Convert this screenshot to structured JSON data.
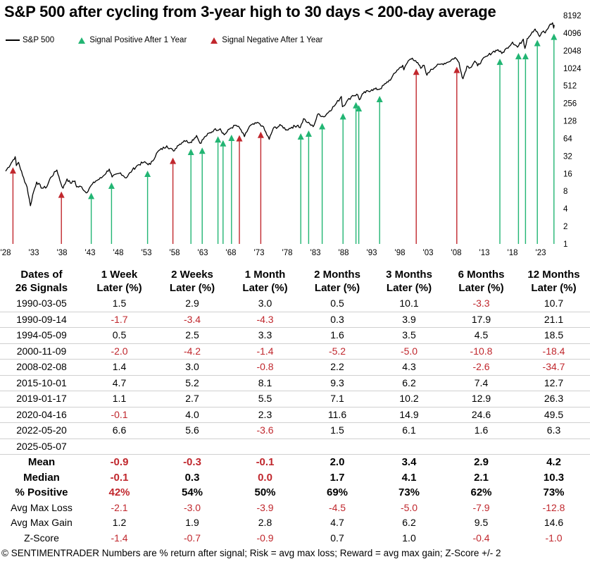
{
  "title": "S&P 500 after cycling from 3-year high to 30 days < 200-day average",
  "legend": {
    "sp500": "S&P 500",
    "positive": "Signal Positive After 1 Year",
    "negative": "Signal Negative After 1 Year"
  },
  "colors": {
    "positive": "#22b573",
    "negative": "#c1272d",
    "line": "#000000",
    "neg_text": "#c0272d"
  },
  "chart_data": {
    "type": "line",
    "y_scale": "log2",
    "ylim": [
      1,
      8192
    ],
    "yticks": [
      "1",
      "2",
      "4",
      "8",
      "16",
      "32",
      "64",
      "128",
      "256",
      "512",
      "1024",
      "2048",
      "4096",
      "8192"
    ],
    "xlim": [
      1928,
      2025.5
    ],
    "xticks": [
      "'28",
      "'33",
      "'38",
      "'43",
      "'48",
      "'53",
      "'58",
      "'63",
      "'68",
      "'73",
      "'78",
      "'83",
      "'88",
      "'93",
      "'98",
      "'03",
      "'08",
      "'13",
      "'18",
      "'23"
    ],
    "series": [
      {
        "name": "S&P 500",
        "points": [
          [
            1928.0,
            17.7
          ],
          [
            1929.0,
            24.4
          ],
          [
            1929.7,
            31.3
          ],
          [
            1929.9,
            22.0
          ],
          [
            1930.3,
            25.0
          ],
          [
            1931.0,
            15.0
          ],
          [
            1931.8,
            9.5
          ],
          [
            1932.4,
            4.5
          ],
          [
            1932.8,
            6.9
          ],
          [
            1933.5,
            11.5
          ],
          [
            1934.5,
            9.0
          ],
          [
            1935.3,
            9.5
          ],
          [
            1936.0,
            13.8
          ],
          [
            1937.1,
            18.5
          ],
          [
            1937.8,
            11.0
          ],
          [
            1938.2,
            9.0
          ],
          [
            1938.9,
            13.0
          ],
          [
            1939.5,
            11.0
          ],
          [
            1940.3,
            12.0
          ],
          [
            1940.6,
            9.5
          ],
          [
            1941.5,
            9.5
          ],
          [
            1942.3,
            7.5
          ],
          [
            1943.0,
            9.5
          ],
          [
            1944.0,
            12.0
          ],
          [
            1945.0,
            13.5
          ],
          [
            1946.4,
            19.2
          ],
          [
            1946.9,
            14.0
          ],
          [
            1948.4,
            16.5
          ],
          [
            1949.4,
            13.5
          ],
          [
            1950.5,
            18.5
          ],
          [
            1951.5,
            22.5
          ],
          [
            1952.5,
            25.0
          ],
          [
            1953.7,
            23.0
          ],
          [
            1955.0,
            38.0
          ],
          [
            1956.6,
            48.0
          ],
          [
            1957.8,
            39.0
          ],
          [
            1958.5,
            48.0
          ],
          [
            1959.7,
            59.0
          ],
          [
            1960.8,
            55.0
          ],
          [
            1961.9,
            72.0
          ],
          [
            1962.5,
            53.0
          ],
          [
            1963.5,
            70.0
          ],
          [
            1965.0,
            90.0
          ],
          [
            1966.1,
            94.0
          ],
          [
            1966.8,
            74.0
          ],
          [
            1967.9,
            96.0
          ],
          [
            1968.9,
            108.0
          ],
          [
            1969.6,
            95.0
          ],
          [
            1970.4,
            69.0
          ],
          [
            1971.3,
            104.0
          ],
          [
            1972.9,
            119.0
          ],
          [
            1973.6,
            105.0
          ],
          [
            1974.8,
            62.0
          ],
          [
            1975.5,
            95.0
          ],
          [
            1976.9,
            107.0
          ],
          [
            1977.9,
            90.0
          ],
          [
            1978.8,
            100.0
          ],
          [
            1979.9,
            108.0
          ],
          [
            1980.3,
            98.0
          ],
          [
            1980.9,
            140.0
          ],
          [
            1981.6,
            120.0
          ],
          [
            1982.6,
            102.0
          ],
          [
            1983.5,
            170.0
          ],
          [
            1984.5,
            150.0
          ],
          [
            1985.5,
            190.0
          ],
          [
            1986.5,
            240.0
          ],
          [
            1987.6,
            336.0
          ],
          [
            1987.8,
            224.0
          ],
          [
            1988.5,
            270.0
          ],
          [
            1989.6,
            350.0
          ],
          [
            1990.5,
            360.0
          ],
          [
            1990.8,
            295.0
          ],
          [
            1991.5,
            380.0
          ],
          [
            1993.0,
            440.0
          ],
          [
            1994.5,
            455.0
          ],
          [
            1995.5,
            560.0
          ],
          [
            1996.5,
            690.0
          ],
          [
            1997.5,
            950.0
          ],
          [
            1998.5,
            1150.0
          ],
          [
            1998.7,
            960.0
          ],
          [
            1999.5,
            1380.0
          ],
          [
            2000.2,
            1527.0
          ],
          [
            2000.8,
            1380.0
          ],
          [
            2001.7,
            1020.0
          ],
          [
            2002.3,
            1150.0
          ],
          [
            2002.8,
            777.0
          ],
          [
            2003.5,
            980.0
          ],
          [
            2004.5,
            1120.0
          ],
          [
            2005.5,
            1220.0
          ],
          [
            2006.5,
            1300.0
          ],
          [
            2007.8,
            1565.0
          ],
          [
            2008.5,
            1280.0
          ],
          [
            2008.9,
            850.0
          ],
          [
            2009.2,
            676.0
          ],
          [
            2009.9,
            1110.0
          ],
          [
            2010.5,
            1050.0
          ],
          [
            2011.3,
            1360.0
          ],
          [
            2011.8,
            1120.0
          ],
          [
            2012.5,
            1380.0
          ],
          [
            2013.5,
            1650.0
          ],
          [
            2014.5,
            1950.0
          ],
          [
            2015.4,
            2130.0
          ],
          [
            2016.1,
            1830.0
          ],
          [
            2017.0,
            2270.0
          ],
          [
            2018.0,
            2870.0
          ],
          [
            2018.9,
            2350.0
          ],
          [
            2019.9,
            3230.0
          ],
          [
            2020.2,
            2237.0
          ],
          [
            2020.6,
            3300.0
          ],
          [
            2021.5,
            4300.0
          ],
          [
            2022.0,
            4797.0
          ],
          [
            2022.8,
            3580.0
          ],
          [
            2023.5,
            4450.0
          ],
          [
            2023.8,
            4120.0
          ],
          [
            2024.5,
            5460.0
          ],
          [
            2025.1,
            6144.0
          ],
          [
            2025.3,
            4980.0
          ],
          [
            2025.4,
            5650.0
          ]
        ]
      }
    ],
    "signals": [
      {
        "x": 1929.3,
        "type": "negative"
      },
      {
        "x": 1937.9,
        "type": "negative"
      },
      {
        "x": 1943.2,
        "type": "positive"
      },
      {
        "x": 1946.8,
        "type": "positive"
      },
      {
        "x": 1953.2,
        "type": "positive"
      },
      {
        "x": 1957.7,
        "type": "negative"
      },
      {
        "x": 1960.9,
        "type": "positive"
      },
      {
        "x": 1962.9,
        "type": "positive"
      },
      {
        "x": 1965.7,
        "type": "positive"
      },
      {
        "x": 1966.6,
        "type": "positive"
      },
      {
        "x": 1968.1,
        "type": "positive"
      },
      {
        "x": 1969.5,
        "type": "negative"
      },
      {
        "x": 1973.3,
        "type": "negative"
      },
      {
        "x": 1980.4,
        "type": "positive"
      },
      {
        "x": 1981.8,
        "type": "positive"
      },
      {
        "x": 1984.2,
        "type": "positive"
      },
      {
        "x": 1987.9,
        "type": "positive"
      },
      {
        "x": 1990.2,
        "type": "positive"
      },
      {
        "x": 1990.7,
        "type": "positive"
      },
      {
        "x": 1994.4,
        "type": "positive"
      },
      {
        "x": 2000.9,
        "type": "negative"
      },
      {
        "x": 2008.1,
        "type": "negative"
      },
      {
        "x": 2015.75,
        "type": "positive"
      },
      {
        "x": 2019.05,
        "type": "positive"
      },
      {
        "x": 2020.3,
        "type": "positive"
      },
      {
        "x": 2022.4,
        "type": "positive"
      },
      {
        "x": 2025.35,
        "type": "positive"
      }
    ]
  },
  "table": {
    "headers": [
      [
        "Dates of",
        "26 Signals"
      ],
      [
        "1 Week",
        "Later (%)"
      ],
      [
        "2 Weeks",
        "Later (%)"
      ],
      [
        "1 Month",
        "Later (%)"
      ],
      [
        "2 Months",
        "Later (%)"
      ],
      [
        "3 Months",
        "Later (%)"
      ],
      [
        "6 Months",
        "Later (%)"
      ],
      [
        "12 Months",
        "Later (%)"
      ]
    ],
    "rows": [
      [
        "1990-03-05",
        "1.5",
        "2.9",
        "3.0",
        "0.5",
        "10.1",
        "-3.3",
        "10.7"
      ],
      [
        "1990-09-14",
        "-1.7",
        "-3.4",
        "-4.3",
        "0.3",
        "3.9",
        "17.9",
        "21.1"
      ],
      [
        "1994-05-09",
        "0.5",
        "2.5",
        "3.3",
        "1.6",
        "3.5",
        "4.5",
        "18.5"
      ],
      [
        "2000-11-09",
        "-2.0",
        "-4.2",
        "-1.4",
        "-5.2",
        "-5.0",
        "-10.8",
        "-18.4"
      ],
      [
        "2008-02-08",
        "1.4",
        "3.0",
        "-0.8",
        "2.2",
        "4.3",
        "-2.6",
        "-34.7"
      ],
      [
        "2015-10-01",
        "4.7",
        "5.2",
        "8.1",
        "9.3",
        "6.2",
        "7.4",
        "12.7"
      ],
      [
        "2019-01-17",
        "1.1",
        "2.7",
        "5.5",
        "7.1",
        "10.2",
        "12.9",
        "26.3"
      ],
      [
        "2020-04-16",
        "-0.1",
        "4.0",
        "2.3",
        "11.6",
        "14.9",
        "24.6",
        "49.5"
      ],
      [
        "2022-05-20",
        "6.6",
        "5.6",
        "-3.6",
        "1.5",
        "6.1",
        "1.6",
        "6.3"
      ],
      [
        "2025-05-07",
        "",
        "",
        "",
        "",
        "",
        "",
        ""
      ]
    ],
    "summary": [
      {
        "label": "Mean",
        "bold": true,
        "values": [
          "-0.9",
          "-0.3",
          "-0.1",
          "2.0",
          "3.4",
          "2.9",
          "4.2"
        ]
      },
      {
        "label": "Median",
        "bold": true,
        "values": [
          "-0.1",
          "0.3",
          "0.0",
          "1.7",
          "4.1",
          "2.1",
          "10.3"
        ],
        "red_cols": [
          0,
          2
        ]
      },
      {
        "label": "% Positive",
        "bold": true,
        "values": [
          "42%",
          "54%",
          "50%",
          "69%",
          "73%",
          "62%",
          "73%"
        ],
        "red_cols": [
          0
        ]
      },
      {
        "label": "Avg Max Loss",
        "bold": false,
        "values": [
          "-2.1",
          "-3.0",
          "-3.9",
          "-4.5",
          "-5.0",
          "-7.9",
          "-12.8"
        ]
      },
      {
        "label": "Avg Max Gain",
        "bold": false,
        "values": [
          "1.2",
          "1.9",
          "2.8",
          "4.7",
          "6.2",
          "9.5",
          "14.6"
        ]
      },
      {
        "label": "Z-Score",
        "bold": false,
        "values": [
          "-1.4",
          "-0.7",
          "-0.9",
          "0.7",
          "1.0",
          "-0.4",
          "-1.0"
        ]
      }
    ]
  },
  "footer": "© SENTIMENTRADER  Numbers are % return after signal; Risk = avg max loss; Reward = avg max gain; Z-Score +/- 2"
}
